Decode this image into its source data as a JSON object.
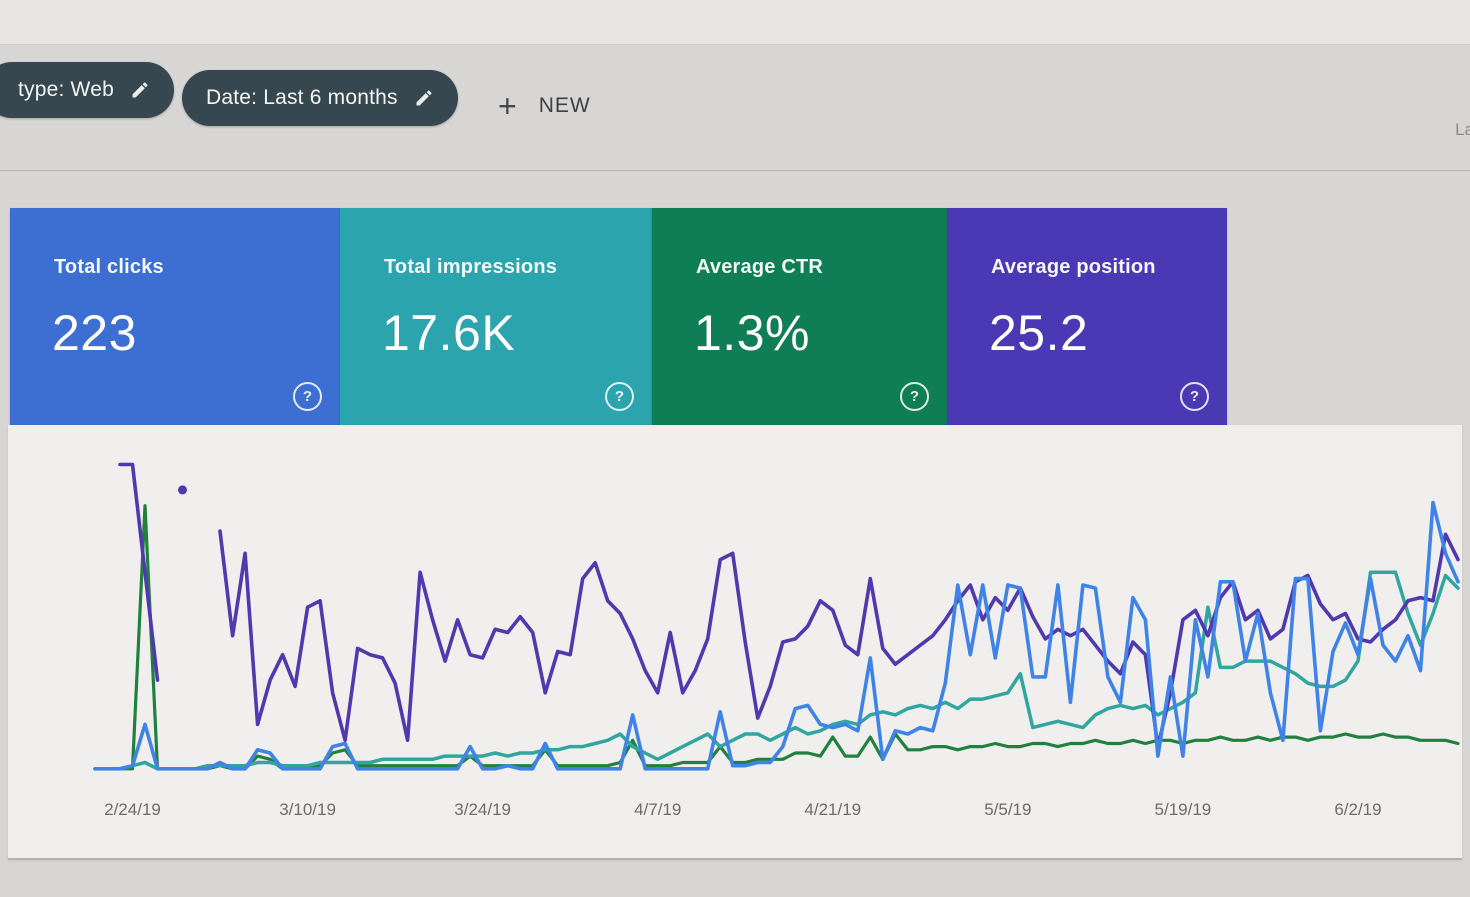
{
  "filter_bar": {
    "chips": [
      {
        "label": "type: Web"
      },
      {
        "label": "Date: Last 6 months"
      }
    ],
    "new_button": {
      "plus_glyph": "+",
      "label": "NEW"
    },
    "truncated_right_text": "La"
  },
  "cards": [
    {
      "label": "Total clicks",
      "value": "223",
      "color": "#3d6fd2",
      "help_glyph": "?"
    },
    {
      "label": "Total impressions",
      "value": "17.6K",
      "color": "#2ba4ae",
      "help_glyph": "?"
    },
    {
      "label": "Average CTR",
      "value": "1.3%",
      "color": "#0f7e56",
      "help_glyph": "?"
    },
    {
      "label": "Average position",
      "value": "25.2",
      "color": "#4a38b4",
      "help_glyph": "?"
    }
  ],
  "chart_data": {
    "type": "line",
    "title": "",
    "xlabel": "",
    "ylabel": "",
    "grid": false,
    "legend": "none visible",
    "n_points": 110,
    "x_tick_labels": [
      "2/24/19",
      "3/10/19",
      "3/24/19",
      "4/7/19",
      "4/21/19",
      "5/5/19",
      "5/19/19",
      "6/2/19"
    ],
    "x_tick_indices": [
      3,
      17,
      31,
      45,
      59,
      73,
      87,
      101
    ],
    "y_units": "normalized 0-100 percent of plot height; no y-axis labels are visible and each series uses its own hidden scale; null = gap in data",
    "summary": {
      "total_clicks": 223,
      "total_impressions": "17.6K",
      "average_ctr": "1.3%",
      "average_position": 25.2
    },
    "series": [
      {
        "name": "CTR",
        "color": "#20803e",
        "width": 3.2,
        "values": [
          1,
          1,
          1,
          1,
          84,
          1,
          1,
          1,
          1,
          1,
          2,
          1,
          1,
          5,
          4,
          1,
          1,
          1,
          2,
          6,
          7,
          2,
          2,
          2,
          2,
          2,
          2,
          2,
          2,
          2,
          5,
          2,
          2,
          2,
          2,
          2,
          7,
          2,
          2,
          2,
          2,
          2,
          3,
          10,
          2,
          2,
          2,
          3,
          3,
          3,
          8,
          3,
          3,
          4,
          4,
          4,
          6,
          6,
          5,
          11,
          5,
          5,
          11,
          4,
          12,
          7,
          7,
          8,
          8,
          7,
          8,
          8,
          9,
          8,
          8,
          9,
          9,
          8,
          9,
          9,
          10,
          9,
          9,
          10,
          9,
          10,
          10,
          9,
          10,
          10,
          11,
          10,
          10,
          11,
          10,
          11,
          11,
          10,
          11,
          11,
          12,
          11,
          11,
          12,
          11,
          11,
          10,
          10,
          10,
          9
        ]
      },
      {
        "name": "Impressions",
        "color": "#31a69f",
        "width": 3.5,
        "values": [
          1,
          1,
          1,
          2,
          3,
          1,
          1,
          1,
          1,
          2,
          2,
          2,
          2,
          3,
          3,
          2,
          2,
          2,
          3,
          3,
          3,
          3,
          3,
          4,
          4,
          4,
          4,
          4,
          5,
          5,
          5,
          5,
          6,
          5,
          6,
          6,
          7,
          7,
          8,
          8,
          9,
          10,
          12,
          8,
          6,
          4,
          6,
          8,
          10,
          12,
          8,
          10,
          12,
          12,
          10,
          12,
          14,
          12,
          13,
          15,
          16,
          15,
          18,
          19,
          18,
          20,
          21,
          20,
          22,
          20,
          23,
          23,
          24,
          25,
          31,
          14,
          15,
          16,
          15,
          14,
          18,
          20,
          21,
          20,
          21,
          18,
          20,
          22,
          25,
          52,
          33,
          33,
          35,
          35,
          35,
          33,
          31,
          28,
          27,
          27,
          29,
          35,
          63,
          63,
          63,
          50,
          40,
          50,
          62,
          58
        ]
      },
      {
        "name": "Position",
        "color": "#5038ae",
        "width": 3.6,
        "values": [
          null,
          null,
          97,
          97,
          63,
          29,
          null,
          89,
          null,
          null,
          76,
          43,
          69,
          15,
          29,
          37,
          27,
          52,
          54,
          25,
          10,
          39,
          37,
          36,
          28,
          10,
          63,
          48,
          35,
          48,
          37,
          36,
          45,
          44,
          49,
          44,
          25,
          38,
          37,
          61,
          66,
          54,
          50,
          42,
          32,
          25,
          44,
          25,
          32,
          42,
          67,
          69,
          41,
          17,
          27,
          41,
          42,
          46,
          54,
          51,
          40,
          37,
          61,
          39,
          34,
          37,
          40,
          43,
          48,
          54,
          59,
          48,
          55,
          51,
          58,
          49,
          42,
          45,
          43,
          45,
          40,
          35,
          31,
          41,
          37,
          8,
          25,
          48,
          51,
          43,
          55,
          60,
          48,
          51,
          42,
          45,
          60,
          62,
          53,
          48,
          50,
          42,
          41,
          45,
          48,
          54,
          55,
          54,
          75,
          67
        ]
      },
      {
        "name": "Clicks",
        "color": "#4083e8",
        "width": 3.6,
        "values": [
          1,
          1,
          1,
          2,
          15,
          1,
          1,
          1,
          1,
          1,
          3,
          1,
          1,
          7,
          6,
          1,
          1,
          1,
          1,
          8,
          9,
          1,
          1,
          1,
          1,
          1,
          1,
          1,
          1,
          1,
          8,
          1,
          1,
          2,
          1,
          1,
          9,
          1,
          1,
          1,
          1,
          1,
          1,
          18,
          1,
          1,
          1,
          1,
          1,
          1,
          19,
          2,
          2,
          3,
          3,
          8,
          20,
          21,
          15,
          14,
          15,
          13,
          36,
          4,
          13,
          12,
          14,
          13,
          28,
          59,
          37,
          59,
          36,
          59,
          58,
          30,
          30,
          59,
          22,
          59,
          58,
          30,
          22,
          55,
          48,
          5,
          30,
          5,
          48,
          30,
          60,
          60,
          35,
          50,
          25,
          10,
          61,
          61,
          13,
          38,
          47,
          37,
          61,
          40,
          35,
          43,
          32,
          85,
          69,
          60
        ]
      }
    ]
  }
}
